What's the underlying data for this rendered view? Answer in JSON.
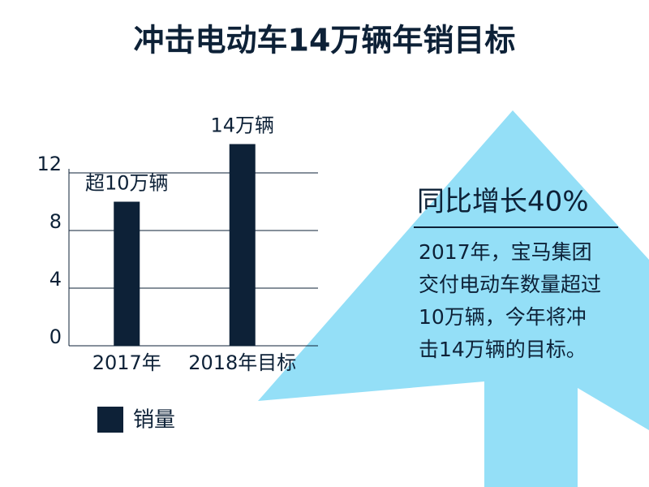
{
  "chart_data": {
    "type": "bar",
    "title": "冲击电动车14万辆年销目标",
    "categories": [
      "2017年",
      "2018年目标"
    ],
    "series": [
      {
        "name": "销量",
        "color": "#0d2137",
        "values": [
          10,
          14
        ],
        "value_labels": [
          "超10万辆",
          "14万辆"
        ]
      }
    ],
    "ylim": [
      0,
      12
    ],
    "yticks": [
      0,
      4,
      8,
      12
    ],
    "grid": true,
    "annotation": {
      "heading": "同比增长40%",
      "lines": [
        "2017年，宝马集团",
        "交付电动车数量超过",
        "10万辆，今年将冲",
        "击14万辆的目标。"
      ]
    }
  }
}
